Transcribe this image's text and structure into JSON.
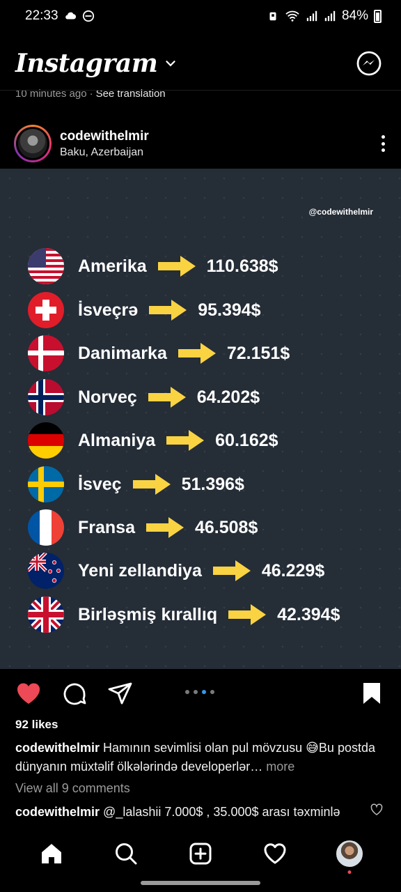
{
  "status_bar": {
    "time": "22:33",
    "battery": "84%"
  },
  "app": {
    "title": "Instagram"
  },
  "prev_post_meta": {
    "time_ago": "10 minutes ago",
    "separator": "·",
    "see_translation": "See translation"
  },
  "post": {
    "username": "codewithelmir",
    "location": "Baku, Azerbaijan",
    "watermark": "@codewithelmir",
    "rows": [
      {
        "country": "Amerika",
        "salary": "110.638$",
        "flag": "us-flag-icon"
      },
      {
        "country": "İsveçrə",
        "salary": "95.394$",
        "flag": "switzerland-flag-icon"
      },
      {
        "country": "Danimarka",
        "salary": "72.151$",
        "flag": "denmark-flag-icon"
      },
      {
        "country": "Norveç",
        "salary": "64.202$",
        "flag": "norway-flag-icon"
      },
      {
        "country": "Almaniya",
        "salary": "60.162$",
        "flag": "germany-flag-icon"
      },
      {
        "country": "İsveç",
        "salary": "51.396$",
        "flag": "sweden-flag-icon"
      },
      {
        "country": "Fransa",
        "salary": "46.508$",
        "flag": "france-flag-icon"
      },
      {
        "country": "Yeni zellandiya",
        "salary": "46.229$",
        "flag": "new-zealand-flag-icon"
      },
      {
        "country": "Birləşmiş kırallıq",
        "salary": "42.394$",
        "flag": "uk-flag-icon"
      }
    ],
    "likes": "92 likes",
    "caption_user": "codewithelmir",
    "caption_text": "Hamının sevimlisi olan pul mövzusu 😅Bu postda  dünyanın müxtəlif ölkələrində developerlər…",
    "caption_more": "more",
    "view_comments": "View all 9 comments",
    "comment_user": "codewithelmir",
    "comment_text": "@_lalashii 7.000$ , 35.000$ arası təxminlə",
    "carousel": {
      "count": 4,
      "active_index": 2
    }
  },
  "colors": {
    "accent_blue": "#3897f0",
    "like_red": "#ed4956",
    "arrow_yellow": "#f9d342",
    "post_bg": "#252d37"
  }
}
